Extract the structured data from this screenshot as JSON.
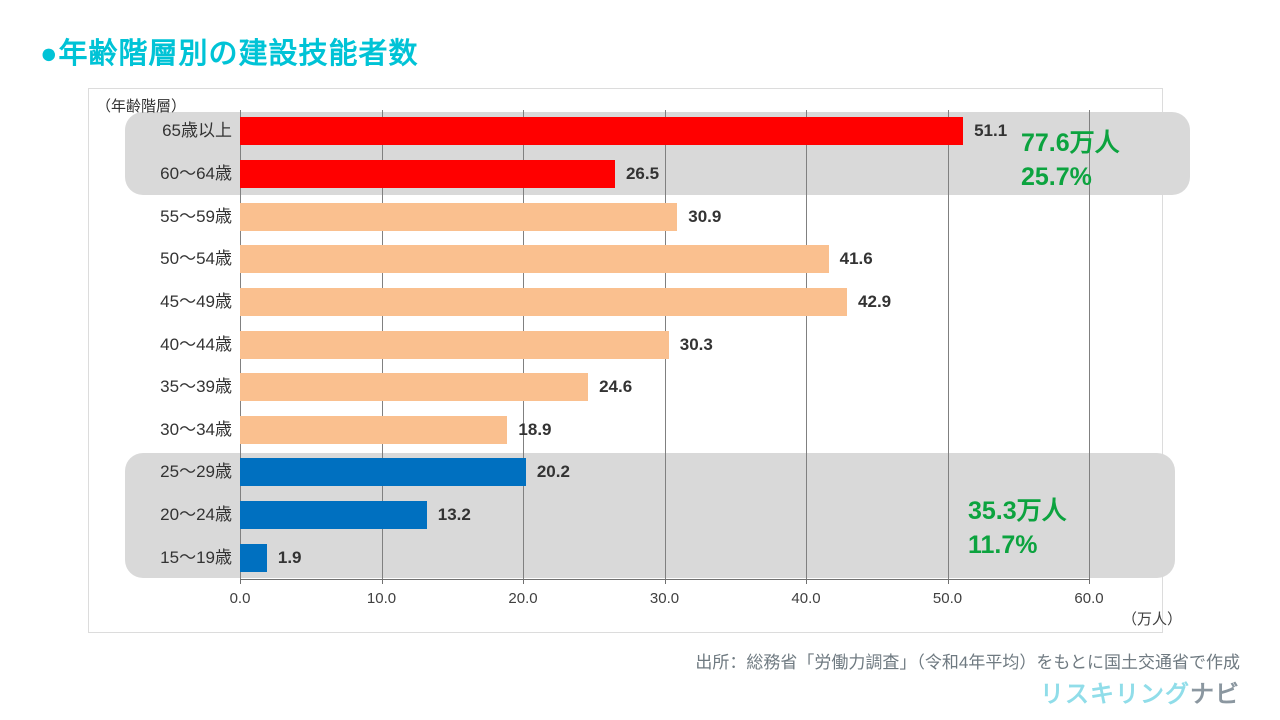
{
  "title": "●年齢階層別の建設技能者数",
  "title_color": "#00c3d6",
  "axis_caption": "（年齢階層）",
  "chart_data": {
    "type": "bar",
    "orientation": "horizontal",
    "title": "年齢階層別の建設技能者数",
    "categories": [
      "65歳以上",
      "60〜64歳",
      "55〜59歳",
      "50〜54歳",
      "45〜49歳",
      "40〜44歳",
      "35〜39歳",
      "30〜34歳",
      "25〜29歳",
      "20〜24歳",
      "15〜19歳"
    ],
    "values": [
      51.1,
      26.5,
      30.9,
      41.6,
      42.9,
      30.3,
      24.6,
      18.9,
      20.2,
      13.2,
      1.9
    ],
    "groups": [
      "senior",
      "senior",
      "mid",
      "mid",
      "mid",
      "mid",
      "mid",
      "mid",
      "young",
      "young",
      "young"
    ],
    "colors": {
      "senior": "#ff0000",
      "mid": "#fac08f",
      "young": "#0070c0"
    },
    "xlim": [
      0,
      60
    ],
    "x_ticks": [
      "0.0",
      "10.0",
      "20.0",
      "30.0",
      "40.0",
      "50.0",
      "60.0"
    ],
    "x_unit_label": "（万人）",
    "grid": "vertical",
    "annotation_color": "#0ca33f",
    "annotations": [
      {
        "line1": "77.6万人",
        "line2": "25.7%",
        "target_group": "senior"
      },
      {
        "line1": "35.3万人",
        "line2": "11.7%",
        "target_group": "young"
      }
    ]
  },
  "footer": {
    "source": "出所：総務省「労働力調査」（令和4年平均）をもとに国土交通省で作成",
    "logo_primary": "リスキリング",
    "logo_primary_color": "#90dde9",
    "logo_secondary": "ナビ",
    "logo_secondary_color": "#8b97a0"
  }
}
